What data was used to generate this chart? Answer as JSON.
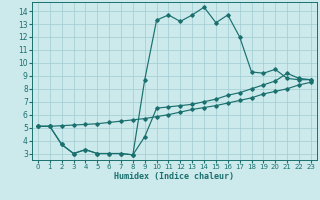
{
  "xlabel": "Humidex (Indice chaleur)",
  "xlim": [
    -0.5,
    23.5
  ],
  "ylim": [
    2.5,
    14.7
  ],
  "xticks": [
    0,
    1,
    2,
    3,
    4,
    5,
    6,
    7,
    8,
    9,
    10,
    11,
    12,
    13,
    14,
    15,
    16,
    17,
    18,
    19,
    20,
    21,
    22,
    23
  ],
  "yticks": [
    3,
    4,
    5,
    6,
    7,
    8,
    9,
    10,
    11,
    12,
    13,
    14
  ],
  "bg_color": "#cce9ec",
  "grid_color": "#a0cdd2",
  "line_color": "#1a706e",
  "line1_x": [
    0,
    1,
    2,
    3,
    4,
    5,
    6,
    7,
    8,
    9,
    10,
    11,
    12,
    13,
    14,
    15,
    16,
    17,
    18,
    19,
    20,
    21,
    22,
    23
  ],
  "line1_y": [
    5.1,
    5.1,
    5.15,
    5.2,
    5.25,
    5.3,
    5.4,
    5.5,
    5.6,
    5.7,
    5.85,
    6.0,
    6.2,
    6.4,
    6.55,
    6.7,
    6.9,
    7.1,
    7.3,
    7.6,
    7.8,
    8.0,
    8.3,
    8.5
  ],
  "line2_x": [
    0,
    1,
    2,
    3,
    4,
    5,
    6,
    7,
    8,
    9,
    10,
    11,
    12,
    13,
    14,
    15,
    16,
    17,
    18,
    19,
    20,
    21,
    22,
    23
  ],
  "line2_y": [
    5.1,
    5.1,
    3.7,
    3.0,
    3.3,
    3.0,
    3.0,
    3.0,
    2.9,
    4.3,
    6.5,
    6.6,
    6.7,
    6.8,
    7.0,
    7.2,
    7.5,
    7.7,
    8.0,
    8.3,
    8.6,
    9.2,
    8.8,
    8.7
  ],
  "line3_x": [
    0,
    1,
    2,
    3,
    4,
    5,
    6,
    7,
    8,
    9,
    10,
    11,
    12,
    13,
    14,
    15,
    16,
    17,
    18,
    19,
    20,
    21,
    22,
    23
  ],
  "line3_y": [
    5.1,
    5.1,
    3.7,
    3.0,
    3.3,
    3.0,
    3.0,
    3.0,
    2.9,
    8.7,
    13.3,
    13.7,
    13.2,
    13.7,
    14.3,
    13.1,
    13.7,
    12.0,
    9.3,
    9.2,
    9.5,
    8.8,
    8.7,
    8.7
  ]
}
